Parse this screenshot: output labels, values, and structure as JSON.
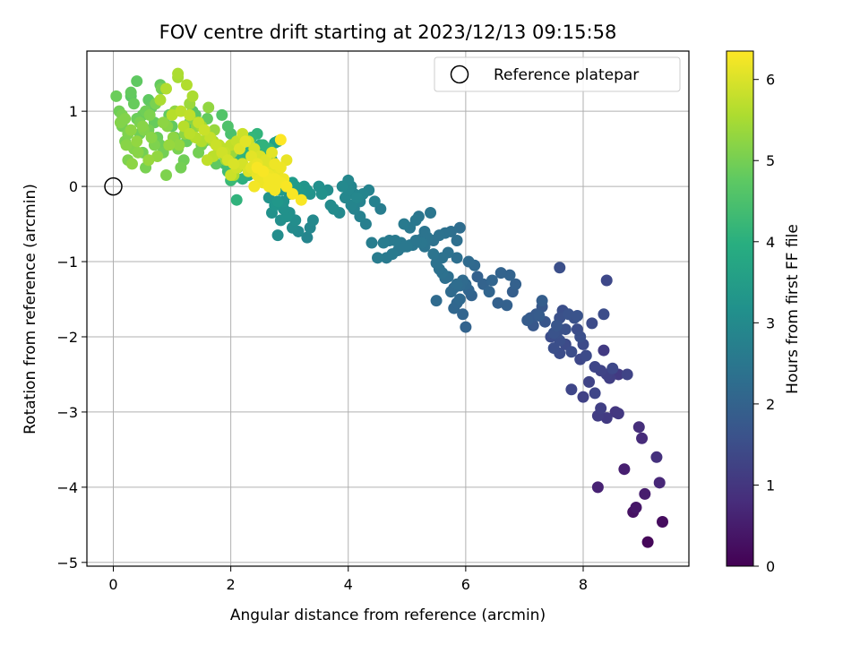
{
  "chart_data": {
    "type": "scatter",
    "title": "FOV centre drift starting at 2023/12/13 09:15:58",
    "xlabel": "Angular distance from reference (arcmin)",
    "ylabel": "Rotation from reference (arcmin)",
    "xlim": [
      -0.45,
      9.8
    ],
    "ylim": [
      -5.05,
      1.8
    ],
    "x_ticks": [
      0,
      2,
      4,
      6,
      8
    ],
    "x_tick_labels": [
      "0",
      "2",
      "4",
      "6",
      "8"
    ],
    "y_ticks": [
      1,
      0,
      -1,
      -2,
      -3,
      -4,
      -5
    ],
    "y_tick_labels": [
      "1",
      "0",
      "−1",
      "−2",
      "−3",
      "−4",
      "−5"
    ],
    "grid": true,
    "legend": {
      "placement": "top-right",
      "entries": [
        {
          "label": "Reference platepar",
          "marker": "open-circle"
        }
      ]
    },
    "reference_point": {
      "x": 0,
      "y": 0
    },
    "colorbar": {
      "label": "Hours from first FF file",
      "range": [
        0,
        6.35
      ],
      "ticks": [
        0,
        1,
        2,
        3,
        4,
        5,
        6
      ],
      "tick_labels": [
        "0",
        "1",
        "2",
        "3",
        "4",
        "5",
        "6"
      ],
      "colormap": "viridis"
    },
    "series": [
      {
        "x": [
          9.1,
          9.35,
          8.85,
          8.9,
          9.05,
          8.7,
          8.25,
          9.3,
          9.0,
          8.95
        ],
        "y": [
          -4.73,
          -4.46,
          -4.33,
          -4.27,
          -4.09,
          -3.76,
          -4.0,
          -3.94,
          -3.35,
          -3.2
        ],
        "c": [
          0.1,
          0.2,
          0.3,
          0.4,
          0.5,
          0.55,
          0.6,
          0.7,
          0.8,
          0.85
        ]
      },
      {
        "x": [
          9.25,
          8.55,
          8.6,
          8.4,
          8.25,
          8.3,
          8.0,
          8.1,
          7.8,
          8.75,
          8.5,
          8.4,
          8.6,
          8.2,
          8.3,
          8.45,
          8.35,
          8.05,
          7.95,
          7.6,
          7.7,
          7.8,
          7.5,
          7.45,
          7.55,
          7.65,
          7.6,
          7.75,
          7.85,
          7.9,
          7.95,
          8.15,
          8.35,
          7.7,
          7.6,
          7.5,
          7.55,
          7.35,
          7.3,
          7.2,
          7.1,
          7.15,
          7.25,
          7.05,
          7.3,
          7.6,
          8.4,
          7.9,
          8.2,
          8.0
        ],
        "y": [
          -3.6,
          -3.0,
          -3.02,
          -3.08,
          -3.05,
          -2.95,
          -2.8,
          -2.6,
          -2.7,
          -2.5,
          -2.42,
          -2.5,
          -2.5,
          -2.4,
          -2.45,
          -2.55,
          -2.18,
          -2.25,
          -2.3,
          -2.22,
          -2.1,
          -2.2,
          -2.15,
          -2.0,
          -1.95,
          -1.65,
          -1.75,
          -1.7,
          -1.75,
          -1.9,
          -2.0,
          -1.82,
          -1.7,
          -1.9,
          -2.05,
          -1.95,
          -1.85,
          -1.8,
          -1.6,
          -1.7,
          -1.75,
          -1.85,
          -1.72,
          -1.78,
          -1.52,
          -1.08,
          -1.25,
          -1.72,
          -2.75,
          -2.1
        ],
        "c": [
          0.9,
          1.0,
          1.05,
          1.1,
          1.15,
          1.2,
          1.25,
          1.3,
          1.35,
          1.3,
          1.4,
          1.25,
          1.1,
          1.35,
          1.3,
          1.2,
          1.1,
          1.45,
          1.4,
          1.5,
          1.45,
          1.5,
          1.55,
          1.5,
          1.6,
          1.55,
          1.6,
          1.65,
          1.6,
          1.5,
          1.55,
          1.45,
          1.5,
          1.6,
          1.55,
          1.65,
          1.7,
          1.7,
          1.75,
          1.8,
          1.8,
          1.75,
          1.85,
          1.85,
          1.9,
          1.55,
          1.4,
          1.65,
          1.35,
          1.45
        ]
      },
      {
        "x": [
          6.0,
          5.95,
          5.8,
          5.85,
          5.9,
          5.75,
          5.8,
          6.05,
          6.1,
          5.5,
          6.2,
          6.3,
          6.45,
          6.55,
          6.7,
          6.8,
          6.85,
          6.75,
          6.6,
          6.4,
          6.0,
          5.95,
          5.9,
          5.85,
          5.7,
          5.65,
          5.6,
          5.55,
          5.5,
          5.45,
          5.6,
          5.7,
          5.85,
          6.05,
          6.15,
          5.3,
          5.25,
          5.1,
          5.0,
          4.9,
          4.8,
          4.7,
          4.6,
          4.5,
          4.65,
          4.75,
          4.85,
          4.95,
          5.05,
          5.15,
          5.25,
          5.35,
          5.45,
          5.55,
          5.65,
          5.75,
          5.9,
          5.85,
          5.2,
          5.15,
          5.05,
          4.95,
          5.3,
          5.4
        ],
        "y": [
          -1.87,
          -1.7,
          -1.62,
          -1.55,
          -1.5,
          -1.4,
          -1.35,
          -1.38,
          -1.45,
          -1.52,
          -1.2,
          -1.3,
          -1.25,
          -1.55,
          -1.58,
          -1.4,
          -1.3,
          -1.18,
          -1.15,
          -1.4,
          -1.3,
          -1.25,
          -1.32,
          -1.3,
          -1.2,
          -1.22,
          -1.15,
          -1.1,
          -1.02,
          -0.9,
          -0.95,
          -0.88,
          -0.95,
          -1.0,
          -1.05,
          -0.8,
          -0.75,
          -0.78,
          -0.8,
          -0.75,
          -0.72,
          -0.72,
          -0.75,
          -0.95,
          -0.95,
          -0.9,
          -0.85,
          -0.8,
          -0.78,
          -0.72,
          -0.7,
          -0.68,
          -0.72,
          -0.65,
          -0.62,
          -0.6,
          -0.55,
          -0.72,
          -0.4,
          -0.45,
          -0.55,
          -0.5,
          -0.6,
          -0.35
        ],
        "c": [
          2.0,
          2.05,
          2.1,
          2.1,
          2.15,
          2.2,
          2.15,
          2.05,
          2.0,
          2.2,
          1.95,
          2.0,
          2.05,
          1.95,
          1.95,
          1.9,
          1.95,
          2.0,
          2.0,
          2.05,
          2.15,
          2.2,
          2.2,
          2.25,
          2.3,
          2.3,
          2.35,
          2.35,
          2.4,
          2.45,
          2.4,
          2.35,
          2.3,
          2.2,
          2.15,
          2.45,
          2.5,
          2.5,
          2.55,
          2.55,
          2.6,
          2.6,
          2.65,
          2.65,
          2.6,
          2.6,
          2.55,
          2.55,
          2.5,
          2.5,
          2.45,
          2.45,
          2.4,
          2.4,
          2.35,
          2.3,
          2.25,
          2.3,
          2.5,
          2.55,
          2.55,
          2.6,
          2.45,
          2.5
        ]
      },
      {
        "x": [
          4.4,
          4.3,
          4.2,
          4.1,
          4.05,
          4.15,
          4.25,
          4.35,
          4.45,
          4.55,
          3.95,
          3.85,
          3.75,
          3.7,
          3.65,
          3.5,
          3.4,
          3.35,
          3.3,
          3.15,
          3.05,
          3.1,
          3.0,
          2.95,
          2.9,
          2.85,
          2.8,
          2.9,
          3.0,
          3.15,
          3.25,
          3.35,
          3.55,
          4.2,
          4.1,
          4.0,
          3.9,
          3.05,
          3.1,
          2.95,
          2.85,
          2.8,
          2.75,
          2.65,
          2.7,
          3.2,
          3.3,
          4.0,
          4.15,
          4.05
        ],
        "y": [
          -0.75,
          -0.5,
          -0.4,
          -0.3,
          -0.25,
          -0.15,
          -0.1,
          -0.05,
          -0.2,
          -0.3,
          -0.15,
          -0.35,
          -0.3,
          -0.25,
          -0.05,
          0.0,
          -0.45,
          -0.55,
          -0.68,
          -0.6,
          -0.55,
          -0.45,
          -0.35,
          -0.4,
          -0.3,
          -0.45,
          -0.65,
          -0.2,
          -0.1,
          -0.05,
          0.0,
          -0.1,
          -0.1,
          -0.2,
          -0.1,
          -0.05,
          0.0,
          0.05,
          0.0,
          0.05,
          -0.05,
          -0.2,
          -0.25,
          -0.15,
          -0.35,
          -0.1,
          -0.05,
          0.08,
          -0.2,
          0.0
        ],
        "c": [
          2.7,
          2.75,
          2.8,
          2.85,
          2.9,
          2.95,
          2.9,
          2.85,
          2.8,
          2.7,
          2.95,
          3.0,
          3.05,
          3.05,
          3.1,
          3.15,
          3.0,
          2.95,
          2.9,
          3.0,
          3.05,
          3.1,
          3.15,
          3.2,
          3.2,
          3.15,
          3.1,
          3.25,
          3.3,
          3.35,
          3.3,
          3.25,
          3.2,
          2.85,
          2.9,
          2.95,
          3.0,
          3.45,
          3.4,
          3.5,
          3.45,
          3.35,
          3.3,
          3.25,
          3.2,
          3.35,
          3.3,
          2.95,
          2.85,
          2.9
        ]
      },
      {
        "x": [
          2.8,
          2.75,
          2.65,
          2.55,
          2.5,
          2.45,
          2.4,
          2.3,
          2.2,
          2.1,
          2.05,
          2.0,
          1.95,
          1.9,
          2.1,
          2.2,
          2.3,
          2.4,
          2.5,
          2.6,
          2.7,
          2.15,
          2.25,
          2.35,
          2.45,
          2.55,
          2.65,
          2.0,
          1.95,
          1.85,
          1.8,
          1.9,
          1.7,
          1.75,
          1.6,
          1.65,
          1.55,
          1.5,
          1.45,
          1.4,
          1.35,
          1.3,
          1.25,
          1.2,
          1.15,
          1.1,
          1.05,
          1.0,
          0.95,
          0.9,
          0.85,
          0.8,
          0.75,
          0.7,
          0.65,
          0.6,
          0.55,
          0.5,
          0.45,
          0.4,
          0.35,
          0.3,
          0.25,
          0.2,
          0.15,
          0.1,
          0.05,
          0.12,
          0.22,
          0.32,
          0.42,
          0.52,
          0.62,
          0.72,
          0.82,
          0.92,
          1.02,
          1.12,
          1.22,
          1.32,
          1.42,
          1.52,
          1.62,
          1.72,
          1.82,
          1.92,
          2.02,
          2.12,
          0.3,
          0.4,
          0.5,
          0.6,
          0.7,
          0.8,
          0.35,
          0.45,
          0.55,
          0.25,
          0.15,
          0.65,
          0.75,
          0.85,
          0.95,
          1.05,
          0.4,
          0.5,
          0.6,
          0.3,
          1.3,
          1.5,
          1.7,
          1.8,
          1.9,
          0.2,
          2.05,
          2.2
        ],
        "y": [
          0.6,
          0.58,
          0.5,
          0.4,
          0.3,
          0.25,
          0.2,
          0.15,
          0.1,
          -0.18,
          0.12,
          0.08,
          0.2,
          0.3,
          0.35,
          0.4,
          0.45,
          0.5,
          0.55,
          0.45,
          0.35,
          0.55,
          0.6,
          0.65,
          0.7,
          0.55,
          0.5,
          0.7,
          0.8,
          0.95,
          0.5,
          0.4,
          0.6,
          0.3,
          0.9,
          0.7,
          0.6,
          0.55,
          0.45,
          0.95,
          1.0,
          0.85,
          0.6,
          0.35,
          0.25,
          0.5,
          0.65,
          0.8,
          0.95,
          0.15,
          0.45,
          0.55,
          0.65,
          0.85,
          1.05,
          1.15,
          0.25,
          0.45,
          0.7,
          0.9,
          1.1,
          1.25,
          0.35,
          0.6,
          0.8,
          1.0,
          1.2,
          0.85,
          0.55,
          0.3,
          0.45,
          0.75,
          0.95,
          1.1,
          1.3,
          0.8,
          0.65,
          0.55,
          0.7,
          0.9,
          0.8,
          0.6,
          1.05,
          0.75,
          0.5,
          0.35,
          0.45,
          0.25,
          1.2,
          1.4,
          0.95,
          0.75,
          0.55,
          1.35,
          0.5,
          0.85,
          1.0,
          0.7,
          0.95,
          0.65,
          0.4,
          0.85,
          0.55,
          1.0,
          0.6,
          0.8,
          0.35,
          0.75,
          1.1,
          0.8,
          0.6,
          0.5,
          0.45,
          0.9,
          0.15,
          0.3
        ],
        "c": [
          3.6,
          3.6,
          3.7,
          3.75,
          3.8,
          3.85,
          3.9,
          3.95,
          4.0,
          4.1,
          4.2,
          4.3,
          4.35,
          4.4,
          4.15,
          4.1,
          4.05,
          4.0,
          3.95,
          3.9,
          3.85,
          4.3,
          4.25,
          4.2,
          4.15,
          4.1,
          4.05,
          4.5,
          4.55,
          4.6,
          4.65,
          4.6,
          4.7,
          4.75,
          4.8,
          4.85,
          4.9,
          4.95,
          5.0,
          4.7,
          4.65,
          4.75,
          4.85,
          4.95,
          5.0,
          5.05,
          4.9,
          4.8,
          4.75,
          5.1,
          5.0,
          4.95,
          4.9,
          4.85,
          4.8,
          4.75,
          5.05,
          5.0,
          4.95,
          4.9,
          4.85,
          4.8,
          5.1,
          5.05,
          5.0,
          4.95,
          4.9,
          5.15,
          5.2,
          5.25,
          5.2,
          5.15,
          5.1,
          5.05,
          5.0,
          5.2,
          5.25,
          5.3,
          5.25,
          5.2,
          5.3,
          5.35,
          5.3,
          5.35,
          5.4,
          5.45,
          5.4,
          5.45,
          4.7,
          4.75,
          4.85,
          5.0,
          5.1,
          4.8,
          5.15,
          5.05,
          4.95,
          5.1,
          5.05,
          5.2,
          5.3,
          5.25,
          5.35,
          5.3,
          5.3,
          5.2,
          5.35,
          5.25,
          5.4,
          5.5,
          5.55,
          5.5,
          5.6,
          5.15,
          5.55,
          5.6
        ]
      },
      {
        "x": [
          1.1,
          1.1,
          1.25,
          1.35,
          1.0,
          0.9,
          0.8,
          1.15,
          1.3,
          1.45,
          1.55,
          1.65,
          1.75,
          1.85,
          1.95,
          2.05,
          2.15,
          2.25,
          2.35,
          2.45,
          2.55,
          2.65,
          2.75,
          2.85,
          2.95,
          3.05,
          3.2,
          2.3,
          2.4,
          2.5,
          2.6,
          2.7,
          2.8,
          2.9,
          2.2,
          2.1,
          2.0,
          1.9,
          1.8,
          1.7,
          1.6,
          1.5,
          1.4,
          1.3,
          1.2,
          2.35,
          2.45,
          2.55,
          2.65,
          2.75,
          2.85,
          2.95,
          2.6,
          2.7,
          2.5,
          2.4,
          2.3,
          2.2,
          2.1,
          2.0,
          1.9,
          1.8,
          2.45,
          2.55,
          2.65,
          2.75,
          2.85
        ],
        "y": [
          1.5,
          1.45,
          1.35,
          1.2,
          0.95,
          1.3,
          1.15,
          1.0,
          0.95,
          0.85,
          0.75,
          0.65,
          0.55,
          0.45,
          0.35,
          0.3,
          0.5,
          0.6,
          0.4,
          0.3,
          0.2,
          0.15,
          0.1,
          0.05,
          0.0,
          -0.1,
          -0.18,
          0.6,
          0.5,
          0.4,
          0.3,
          0.2,
          0.15,
          0.1,
          0.7,
          0.6,
          0.55,
          0.5,
          0.45,
          0.4,
          0.35,
          0.6,
          0.65,
          0.7,
          0.8,
          0.25,
          0.15,
          0.05,
          0.0,
          -0.05,
          0.25,
          0.35,
          0.35,
          0.45,
          0.1,
          0.0,
          0.2,
          0.3,
          0.25,
          0.15,
          0.45,
          0.55,
          0.25,
          0.2,
          0.1,
          0.3,
          0.62
        ],
        "c": [
          5.55,
          5.5,
          5.6,
          5.55,
          5.65,
          5.6,
          5.55,
          5.7,
          5.75,
          5.8,
          5.85,
          5.8,
          5.85,
          5.9,
          5.95,
          6.0,
          6.05,
          6.1,
          6.1,
          6.15,
          6.2,
          6.2,
          6.25,
          6.25,
          6.3,
          6.3,
          6.3,
          5.9,
          5.95,
          6.0,
          6.05,
          6.1,
          6.15,
          6.2,
          5.85,
          5.8,
          5.75,
          5.7,
          5.65,
          5.7,
          5.75,
          5.6,
          5.65,
          5.7,
          5.65,
          6.1,
          6.15,
          6.2,
          6.25,
          6.25,
          6.2,
          6.15,
          6.05,
          6.1,
          6.2,
          6.25,
          6.0,
          5.95,
          5.9,
          5.85,
          5.8,
          5.75,
          6.3,
          6.3,
          6.25,
          6.2,
          6.35
        ]
      }
    ]
  }
}
